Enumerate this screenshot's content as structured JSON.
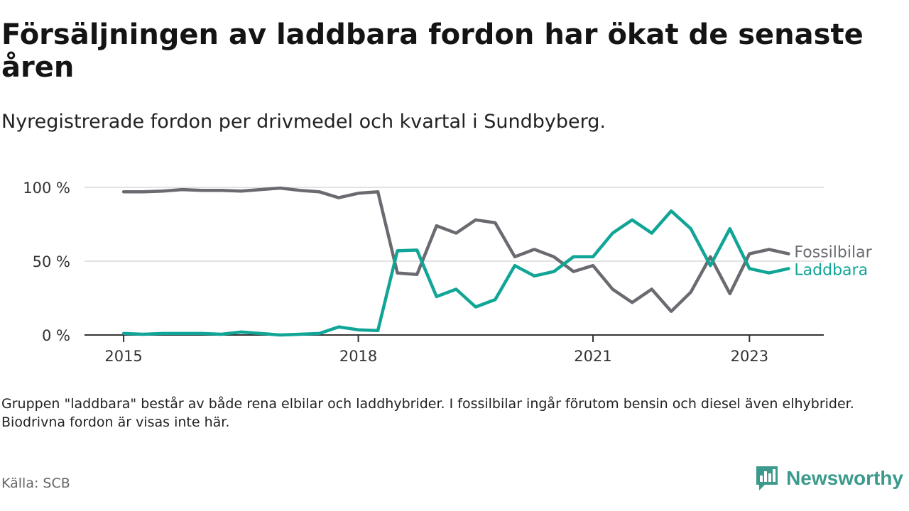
{
  "header": {
    "title": "Försäljningen av laddbara fordon har ökat de senaste åren",
    "subtitle": "Nyregistrerade fordon per drivmedel och kvartal i Sundbyberg."
  },
  "footer": {
    "note": "Gruppen \"laddbara\" består av både rena elbilar och laddhybrider. I fossilbilar ingår förutom bensin och diesel även elhybrider. Biodrivna fordon är visas inte här.",
    "source": "Källa: SCB",
    "brand": "Newsworthy",
    "brand_icon": "newsworthy-logo-icon",
    "brand_color": "#3b9a8c"
  },
  "chart_data": {
    "type": "line",
    "x": [
      2015.0,
      2015.25,
      2015.5,
      2015.75,
      2016.0,
      2016.25,
      2016.5,
      2016.75,
      2017.0,
      2017.25,
      2017.5,
      2017.75,
      2018.0,
      2018.25,
      2018.5,
      2018.75,
      2019.0,
      2019.25,
      2019.5,
      2019.75,
      2020.0,
      2020.25,
      2020.5,
      2020.75,
      2021.0,
      2021.25,
      2021.5,
      2021.75,
      2022.0,
      2022.25,
      2022.5,
      2022.75,
      2023.0,
      2023.25,
      2023.5
    ],
    "series": [
      {
        "name": "Fossilbilar",
        "color": "#6b6a70",
        "values": [
          97,
          97,
          97.5,
          98.5,
          98,
          98,
          97.5,
          98.5,
          99.5,
          98,
          97,
          93,
          96,
          97,
          42,
          41,
          74,
          69,
          78,
          76,
          53,
          58,
          53,
          43,
          47,
          31,
          22,
          31,
          16,
          29,
          53,
          28,
          55,
          58,
          55
        ]
      },
      {
        "name": "Laddbara",
        "color": "#10a596",
        "values": [
          1,
          0.5,
          1,
          1,
          1,
          0.5,
          2,
          1,
          0,
          0.5,
          1,
          5.5,
          3.5,
          3,
          57,
          57.5,
          26,
          31,
          19,
          24,
          47,
          40,
          43,
          53,
          53,
          69,
          78,
          69,
          84,
          72,
          47,
          72,
          45,
          42,
          45
        ]
      }
    ],
    "xticks": [
      {
        "value": 2015,
        "label": "2015"
      },
      {
        "value": 2018,
        "label": "2018"
      },
      {
        "value": 2021,
        "label": "2021"
      },
      {
        "value": 2023,
        "label": "2023"
      }
    ],
    "yticks": [
      {
        "value": 0,
        "label": "0 %"
      },
      {
        "value": 50,
        "label": "50 %"
      },
      {
        "value": 100,
        "label": "100 %"
      }
    ],
    "xlim": [
      2014.5,
      2023.95
    ],
    "ylim": [
      0,
      100
    ],
    "grid": true,
    "legend": "inline at line ends"
  }
}
